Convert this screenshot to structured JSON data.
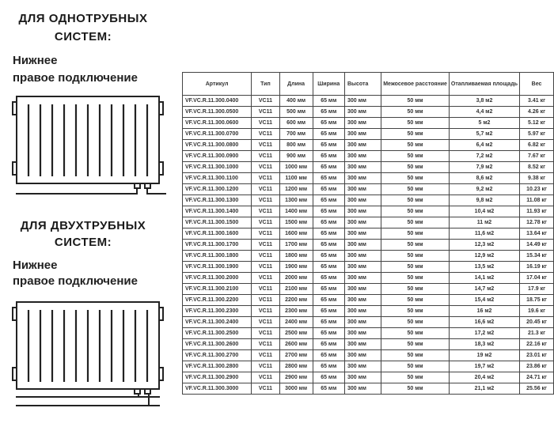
{
  "section1": {
    "title_line1": "ДЛЯ ОДНОТРУБНЫХ",
    "title_line2": "СИСТЕМ:",
    "subtitle_line1": "Нижнее",
    "subtitle_line2": "правое подключение"
  },
  "section2": {
    "title_line1": "ДЛЯ ДВУХТРУБНЫХ",
    "title_line2": "СИСТЕМ:",
    "subtitle_line1": "Нижнее",
    "subtitle_line2": "правое подключение"
  },
  "table": {
    "headers": [
      "Артикул",
      "Тип",
      "Длина",
      "Ширина",
      "Высота",
      "Межосевое расстояние",
      "Отапливаемая площадь",
      "Вес"
    ],
    "rows": [
      [
        "VF.VC.R.11.300.0400",
        "VC11",
        "400 мм",
        "65 мм",
        "300 мм",
        "50 мм",
        "3,8 м2",
        "3.41 кг"
      ],
      [
        "VF.VC.R.11.300.0500",
        "VC11",
        "500 мм",
        "65 мм",
        "300 мм",
        "50 мм",
        "4,4 м2",
        "4.26 кг"
      ],
      [
        "VF.VC.R.11.300.0600",
        "VC11",
        "600 мм",
        "65 мм",
        "300 мм",
        "50 мм",
        "5 м2",
        "5.12 кг"
      ],
      [
        "VF.VC.R.11.300.0700",
        "VC11",
        "700 мм",
        "65 мм",
        "300 мм",
        "50 мм",
        "5,7 м2",
        "5.97 кг"
      ],
      [
        "VF.VC.R.11.300.0800",
        "VC11",
        "800 мм",
        "65 мм",
        "300 мм",
        "50 мм",
        "6,4 м2",
        "6.82 кг"
      ],
      [
        "VF.VC.R.11.300.0900",
        "VC11",
        "900 мм",
        "65 мм",
        "300 мм",
        "50 мм",
        "7,2 м2",
        "7.67 кг"
      ],
      [
        "VF.VC.R.11.300.1000",
        "VC11",
        "1000 мм",
        "65 мм",
        "300 мм",
        "50 мм",
        "7,9 м2",
        "8.52 кг"
      ],
      [
        "VF.VC.R.11.300.1100",
        "VC11",
        "1100 мм",
        "65 мм",
        "300 мм",
        "50 мм",
        "8,6 м2",
        "9.38 кг"
      ],
      [
        "VF.VC.R.11.300.1200",
        "VC11",
        "1200 мм",
        "65 мм",
        "300 мм",
        "50 мм",
        "9,2 м2",
        "10.23 кг"
      ],
      [
        "VF.VC.R.11.300.1300",
        "VC11",
        "1300 мм",
        "65 мм",
        "300 мм",
        "50 мм",
        "9,8 м2",
        "11.08 кг"
      ],
      [
        "VF.VC.R.11.300.1400",
        "VC11",
        "1400 мм",
        "65 мм",
        "300 мм",
        "50 мм",
        "10,4 м2",
        "11.93 кг"
      ],
      [
        "VF.VC.R.11.300.1500",
        "VC11",
        "1500 мм",
        "65 мм",
        "300 мм",
        "50 мм",
        "11 м2",
        "12.78 кг"
      ],
      [
        "VF.VC.R.11.300.1600",
        "VC11",
        "1600 мм",
        "65 мм",
        "300 мм",
        "50 мм",
        "11,6 м2",
        "13.64 кг"
      ],
      [
        "VF.VC.R.11.300.1700",
        "VC11",
        "1700 мм",
        "65 мм",
        "300 мм",
        "50 мм",
        "12,3 м2",
        "14.49 кг"
      ],
      [
        "VF.VC.R.11.300.1800",
        "VC11",
        "1800 мм",
        "65 мм",
        "300 мм",
        "50 мм",
        "12,9 м2",
        "15.34 кг"
      ],
      [
        "VF.VC.R.11.300.1900",
        "VC11",
        "1900 мм",
        "65 мм",
        "300 мм",
        "50 мм",
        "13,5 м2",
        "16.19 кг"
      ],
      [
        "VF.VC.R.11.300.2000",
        "VC11",
        "2000 мм",
        "65 мм",
        "300 мм",
        "50 мм",
        "14,1 м2",
        "17.04 кг"
      ],
      [
        "VF.VC.R.11.300.2100",
        "VC11",
        "2100 мм",
        "65 мм",
        "300 мм",
        "50 мм",
        "14,7 м2",
        "17.9 кг"
      ],
      [
        "VF.VC.R.11.300.2200",
        "VC11",
        "2200 мм",
        "65 мм",
        "300 мм",
        "50 мм",
        "15,4 м2",
        "18.75 кг"
      ],
      [
        "VF.VC.R.11.300.2300",
        "VC11",
        "2300 мм",
        "65 мм",
        "300 мм",
        "50 мм",
        "16 м2",
        "19.6 кг"
      ],
      [
        "VF.VC.R.11.300.2400",
        "VC11",
        "2400 мм",
        "65 мм",
        "300 мм",
        "50 мм",
        "16,6 м2",
        "20.45 кг"
      ],
      [
        "VF.VC.R.11.300.2500",
        "VC11",
        "2500 мм",
        "65 мм",
        "300 мм",
        "50 мм",
        "17,2 м2",
        "21.3 кг"
      ],
      [
        "VF.VC.R.11.300.2600",
        "VC11",
        "2600 мм",
        "65 мм",
        "300 мм",
        "50 мм",
        "18,3 м2",
        "22.16 кг"
      ],
      [
        "VF.VC.R.11.300.2700",
        "VC11",
        "2700 мм",
        "65 мм",
        "300 мм",
        "50 мм",
        "19 м2",
        "23.01 кг"
      ],
      [
        "VF.VC.R.11.300.2800",
        "VC11",
        "2800 мм",
        "65 мм",
        "300 мм",
        "50 мм",
        "19,7 м2",
        "23.86 кг"
      ],
      [
        "VF.VC.R.11.300.2900",
        "VC11",
        "2900 мм",
        "65 мм",
        "300 мм",
        "50 мм",
        "20,4 м2",
        "24.71 кг"
      ],
      [
        "VF.VC.R.11.300.3000",
        "VC11",
        "3000 мм",
        "65 мм",
        "300 мм",
        "50 мм",
        "21,1 м2",
        "25.56 кг"
      ]
    ]
  }
}
